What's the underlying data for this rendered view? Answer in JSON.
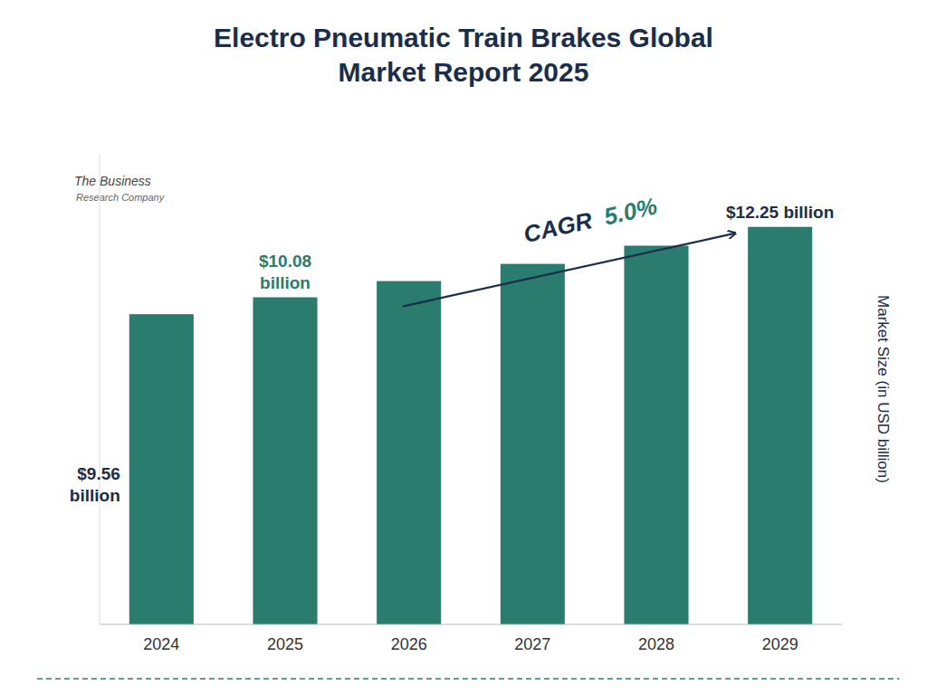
{
  "chart_data": {
    "type": "bar",
    "title": "Electro Pneumatic Train Brakes Global\nMarket Report 2025",
    "y_label": "Market Size (in USD billion)",
    "categories": [
      "2024",
      "2025",
      "2026",
      "2027",
      "2028",
      "2029"
    ],
    "values": [
      9.56,
      10.08,
      10.58,
      11.11,
      11.67,
      12.25
    ],
    "value_labels": [
      "$9.56\nbillion",
      "$10.08\nbillion",
      null,
      null,
      null,
      "$12.25 billion"
    ],
    "color": "#2a7d6e",
    "ylim": [
      0,
      14.5
    ],
    "tick_labels": "x",
    "grid": false,
    "data_labels": true,
    "annotations": [
      "CAGR ",
      "5.0%",
      "The Business",
      "Research Company"
    ]
  }
}
